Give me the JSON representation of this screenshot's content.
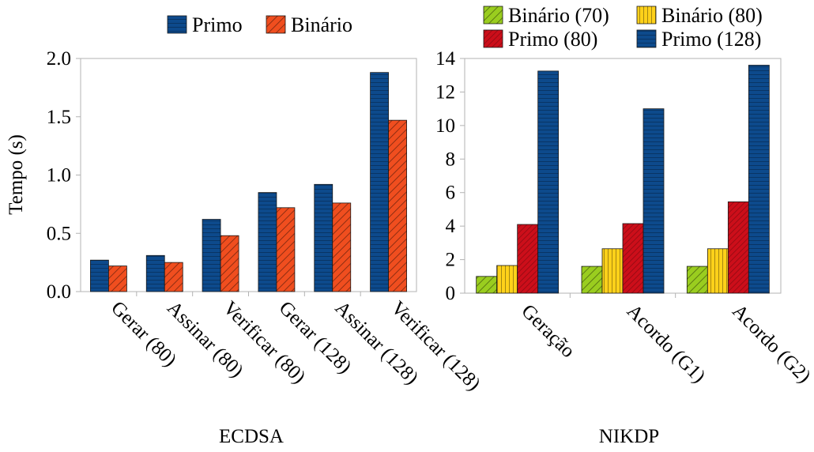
{
  "chart_data": [
    {
      "type": "bar",
      "xlabel": "ECDSA",
      "ylabel": "Tempo (s)",
      "ylim": [
        0,
        2.0
      ],
      "yticks": [
        "0.0",
        "0.5",
        "1.0",
        "1.5",
        "2.0"
      ],
      "grid": false,
      "legend": "top",
      "categories": [
        "Gerar (80)",
        "Assinar (80)",
        "Verificar (80)",
        "Gerar (128)",
        "Assinar (128)",
        "Verificar (128)"
      ],
      "series": [
        {
          "name": "Primo",
          "color": "#0d4a8c",
          "pattern": "horizontal-lines",
          "values": [
            0.27,
            0.31,
            0.62,
            0.85,
            0.92,
            1.88
          ]
        },
        {
          "name": "Binário",
          "color": "#f04e1f",
          "pattern": "diagonal-hatch",
          "values": [
            0.22,
            0.25,
            0.48,
            0.72,
            0.76,
            1.47
          ]
        }
      ]
    },
    {
      "type": "bar",
      "xlabel": "NIKDP",
      "ylabel": "",
      "ylim": [
        0,
        14
      ],
      "yticks": [
        "0",
        "2",
        "4",
        "6",
        "8",
        "10",
        "12",
        "14"
      ],
      "grid": false,
      "legend": "top",
      "categories": [
        "Geração",
        "Acordo (G1)",
        "Acordo (G2)"
      ],
      "series": [
        {
          "name": "Binário (70)",
          "color": "#9acd1f",
          "pattern": "diagonal-hatch",
          "values": [
            1.0,
            1.6,
            1.6
          ]
        },
        {
          "name": "Binário (80)",
          "color": "#ffd11a",
          "pattern": "vertical-lines",
          "values": [
            1.65,
            2.65,
            2.65
          ]
        },
        {
          "name": "Primo (80)",
          "color": "#cc0e1a",
          "pattern": "diagonal-hatch-fine",
          "values": [
            4.1,
            4.15,
            5.45
          ]
        },
        {
          "name": "Primo (128)",
          "color": "#0d4a8c",
          "pattern": "horizontal-lines",
          "values": [
            13.25,
            11.0,
            13.6
          ]
        }
      ]
    }
  ]
}
